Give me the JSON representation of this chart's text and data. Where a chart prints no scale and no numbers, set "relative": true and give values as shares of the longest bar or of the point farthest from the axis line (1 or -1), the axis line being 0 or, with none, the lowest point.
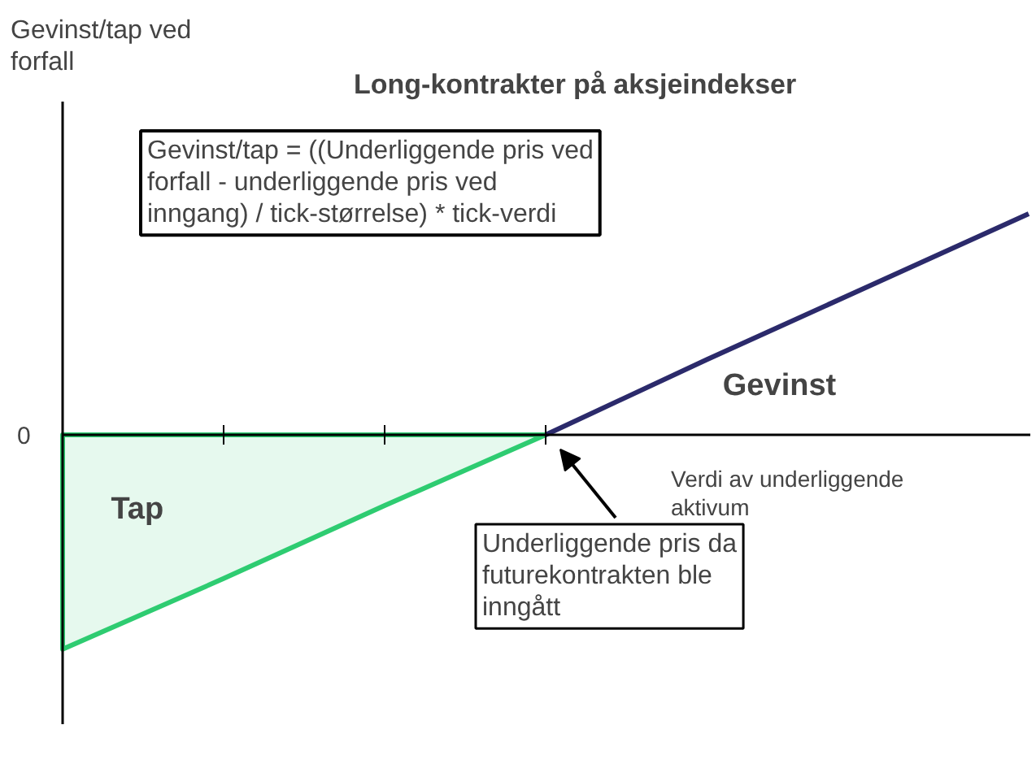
{
  "chart_data": {
    "type": "line",
    "relative": true,
    "title": "Long-kontrakter på aksjeindekser",
    "xlabel": "Verdi av underliggende aktivum",
    "categories": [
      null,
      null,
      null,
      null,
      null,
      null,
      null
    ],
    "tick_labels": false,
    "series": [
      {
        "name": "Tap",
        "type": "area",
        "color": "#2ecc71",
        "values": [
          -0.97,
          -0.65,
          -0.32,
          0,
          null,
          null,
          null
        ]
      },
      {
        "name": "Gevinst",
        "color": "#2b2a6b",
        "values": [
          null,
          null,
          null,
          0,
          0.34,
          0.67,
          1.0
        ]
      }
    ],
    "annotations": [
      "0",
      "Gevinst/tap = ((Underliggende pris ved forfall - underliggende pris ved inngang) / tick-størrelse) * tick-verdi",
      "Underliggende pris da futurekontrakten ble inngått",
      "Gevinst/tap ved forfall"
    ]
  }
}
